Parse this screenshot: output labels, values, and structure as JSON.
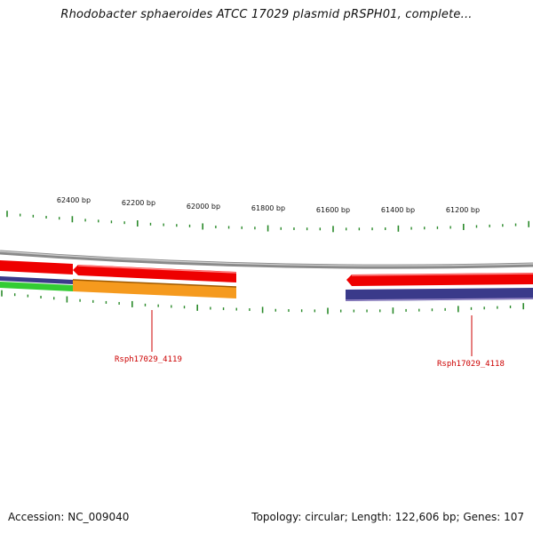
{
  "title": "Rhodobacter sphaeroides ATCC 17029 plasmid pRSPH01, complete...",
  "ruler": {
    "labels": [
      "62400 bp",
      "62200 bp",
      "62000 bp",
      "61800 bp",
      "61600 bp",
      "61400 bp",
      "61200 bp"
    ],
    "tick_color": "#2a8a2a"
  },
  "genes": [
    {
      "label": "Rsph17029_4119",
      "color": "#cc0000"
    },
    {
      "label": "Rsph17029_4118",
      "color": "#cc0000"
    }
  ],
  "tracks": {
    "backbone_color": "#8a8a8a",
    "forward_color": "#ee0000",
    "reverse_color": "#3a3a8a",
    "orange_color": "#f59a1e",
    "green_color": "#33cc33"
  },
  "footer": {
    "accession": "Accession: NC_009040",
    "summary": "Topology: circular; Length: 122,606 bp; Genes: 107"
  }
}
